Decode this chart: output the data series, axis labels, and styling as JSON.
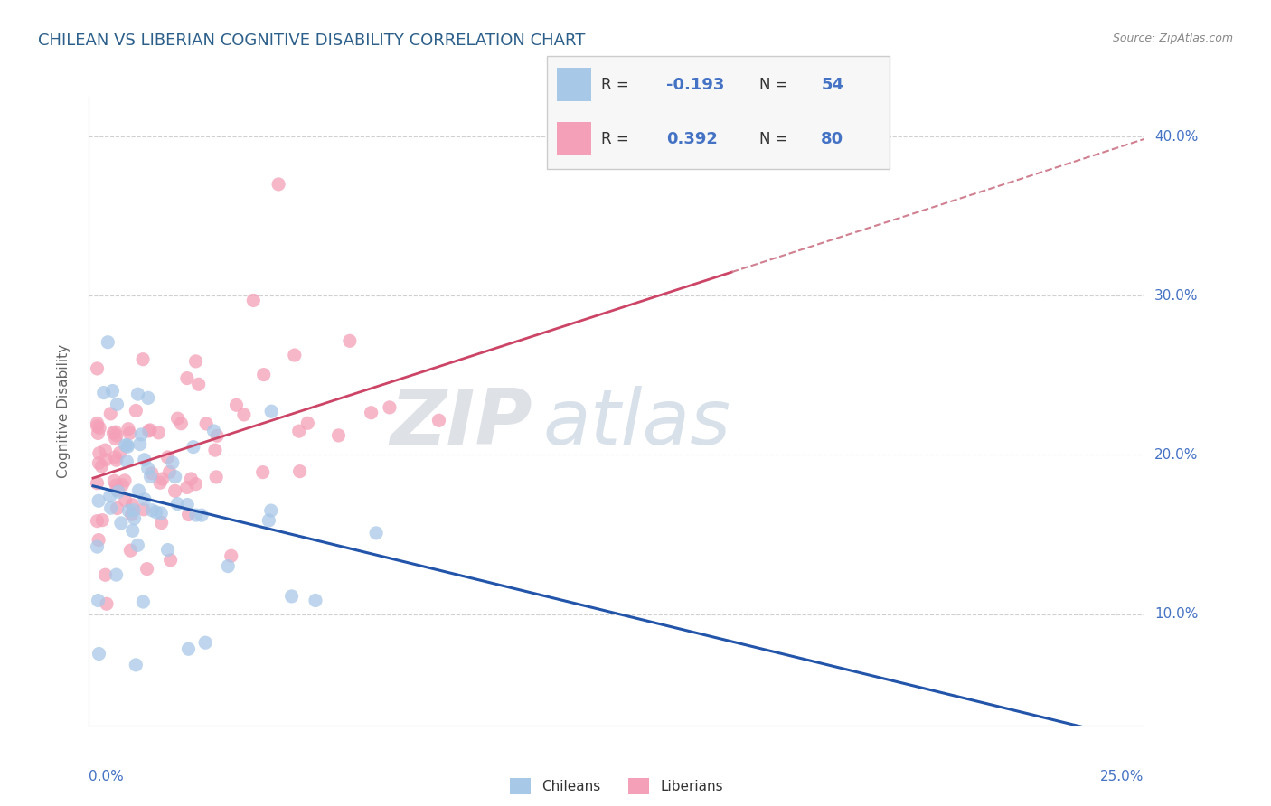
{
  "title": "CHILEAN VS LIBERIAN COGNITIVE DISABILITY CORRELATION CHART",
  "source": "Source: ZipAtlas.com",
  "ylabel": "Cognitive Disability",
  "ylim": [
    0.03,
    0.425
  ],
  "xlim": [
    -0.001,
    0.255
  ],
  "yticks": [
    0.1,
    0.2,
    0.3,
    0.4
  ],
  "ytick_labels": [
    "10.0%",
    "20.0%",
    "30.0%",
    "40.0%"
  ],
  "chilean_R": -0.193,
  "chilean_N": 54,
  "liberian_R": 0.392,
  "liberian_N": 80,
  "blue_color": "#a8c8e8",
  "pink_color": "#f4a0b8",
  "blue_line_color": "#2255aa",
  "pink_line_color": "#cc4466",
  "title_color": "#2c5f8a",
  "axis_label_color": "#4472c4",
  "watermark_zip": "ZIP",
  "watermark_atlas": "atlas",
  "legend_blue_R": "-0.193",
  "legend_blue_N": "54",
  "legend_pink_R": "0.392",
  "legend_pink_N": "80"
}
